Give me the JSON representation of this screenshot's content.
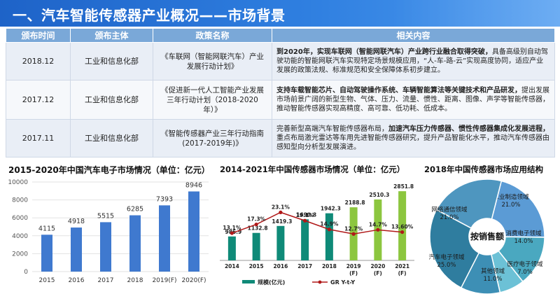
{
  "header": {
    "title": "一、汽车智能传感器产业概况——市场背景"
  },
  "table": {
    "columns": [
      "颁布时间",
      "颁布主体",
      "政策名称",
      "相关内容"
    ],
    "rows": [
      {
        "date": "2018.12",
        "org": "工业和信息化部",
        "name": "《车联网（智能网联汽车）产业发展行动计划》",
        "content_bold": "到2020年，实现车联网（智能网联汽车）产业跨行业融合取得突破，",
        "content_rest": "具备高级别自动驾驶功能的智能网联汽车实现特定场景规模应用，“人-车-路-云”实现高度协同，适应产业发展的政策法规、标准规范和安全保障体系初步建立。"
      },
      {
        "date": "2017.12",
        "org": "工业和信息化部",
        "name": "《促进新一代人工智能产业发展三年行动计划（2018-2020年）》",
        "content_bold": "支持车载智能芯片、自动驾驶操作系统、车辆智能算法等关键技术和产品研发，",
        "content_rest": "提出发展市场前景广阔的新型生物、气体、压力、流量、惯性、距离、图像、声学等智能传感器，推动智能传感器实现高精度、高可靠、低功耗、低成本。"
      },
      {
        "date": "2017.11",
        "org": "工业和信息化部",
        "name": "《智能传感器产业三年行动指南(2017-2019年)》",
        "content_pre": "完善新型高端汽车智能传感器布局，",
        "content_bold": "加速汽车压力传感器、惯性传感器集成化发展进程，",
        "content_rest": "重点布局激光雷达等车用先进智能传感器研究，提升产品智能化水平，推动汽车传感器由感知型向分析型发展演进。"
      }
    ]
  },
  "chart_data": [
    {
      "type": "bar",
      "title": "2015-2020年中国汽车电子市场情况（单位：亿元）",
      "categories": [
        "2015",
        "2016",
        "2017",
        "2018",
        "2019(F)",
        "2020(F)"
      ],
      "values": [
        4115,
        4918,
        5515,
        6285,
        7393,
        8946
      ],
      "value_labels": [
        "4115",
        "4918",
        "5515",
        "6285",
        "7393",
        "8946"
      ],
      "ylim": [
        0,
        10000
      ],
      "yticks": [
        "0",
        "2000",
        "4000",
        "6000",
        "8000",
        "10000"
      ],
      "grid": true,
      "colors": {
        "bars": "#3f79cf"
      }
    },
    {
      "type": "bar",
      "title": "2014-2021年中国传感器市场情况（单位：亿元）",
      "categories": [
        "2014",
        "2015",
        "2016",
        "2017",
        "2018",
        "2019\n(F)",
        "2020\n(F)",
        "2021\n(F)"
      ],
      "series": [
        {
          "name": "规模(亿元)",
          "type": "bar",
          "values": [
            986.9,
            1132.8,
            1419.3,
            1690.8,
            1942.3,
            2188.8,
            2510.3,
            2851.8
          ],
          "value_labels": [
            "986.9",
            "1132.8",
            "1419.3",
            "1690.8",
            "1942.3",
            "2188.8",
            "2510.3",
            "2851.8"
          ]
        },
        {
          "name": "GR Y-t-Y",
          "type": "line",
          "values": [
            13.1,
            17.3,
            23.1,
            19.1,
            14.9,
            12.7,
            14.7,
            13.6
          ],
          "value_labels": [
            "13.1%",
            "17.3%",
            "23.1%",
            "19.1%",
            "14.9%",
            "12.7%",
            "14.7%",
            "13.60%"
          ]
        }
      ],
      "legend_placement": "bottom",
      "ylim": [
        0,
        3000
      ],
      "y2lim": [
        0,
        35
      ],
      "colors": {
        "bars_actual": "#0f8a78",
        "bars_forecast": "#8cc63f",
        "line": "#b01818"
      }
    },
    {
      "type": "pie",
      "title": "2018年中国传感器市场应用结构",
      "center_label": "按销售额",
      "slices": [
        {
          "label": "工业制造领域",
          "value": 21.0,
          "value_label": "21.0%"
        },
        {
          "label": "消费电子领域",
          "value": 14.0,
          "value_label": "14.0%"
        },
        {
          "label": "医疗电子领域",
          "value": 7.0,
          "value_label": "7.0%"
        },
        {
          "label": "其他领域",
          "value": 11.0,
          "value_label": "11.0%"
        },
        {
          "label": "汽车电子领域",
          "value": 25.0,
          "value_label": "25.0%"
        },
        {
          "label": "网络通信领域",
          "value": 21.0,
          "value_label": "21.0%"
        }
      ],
      "colors": [
        "#5b9bd5",
        "#4aa8c0",
        "#6cc1d6",
        "#3d8fb5",
        "#2f7d9f",
        "#4e96bf"
      ]
    }
  ]
}
